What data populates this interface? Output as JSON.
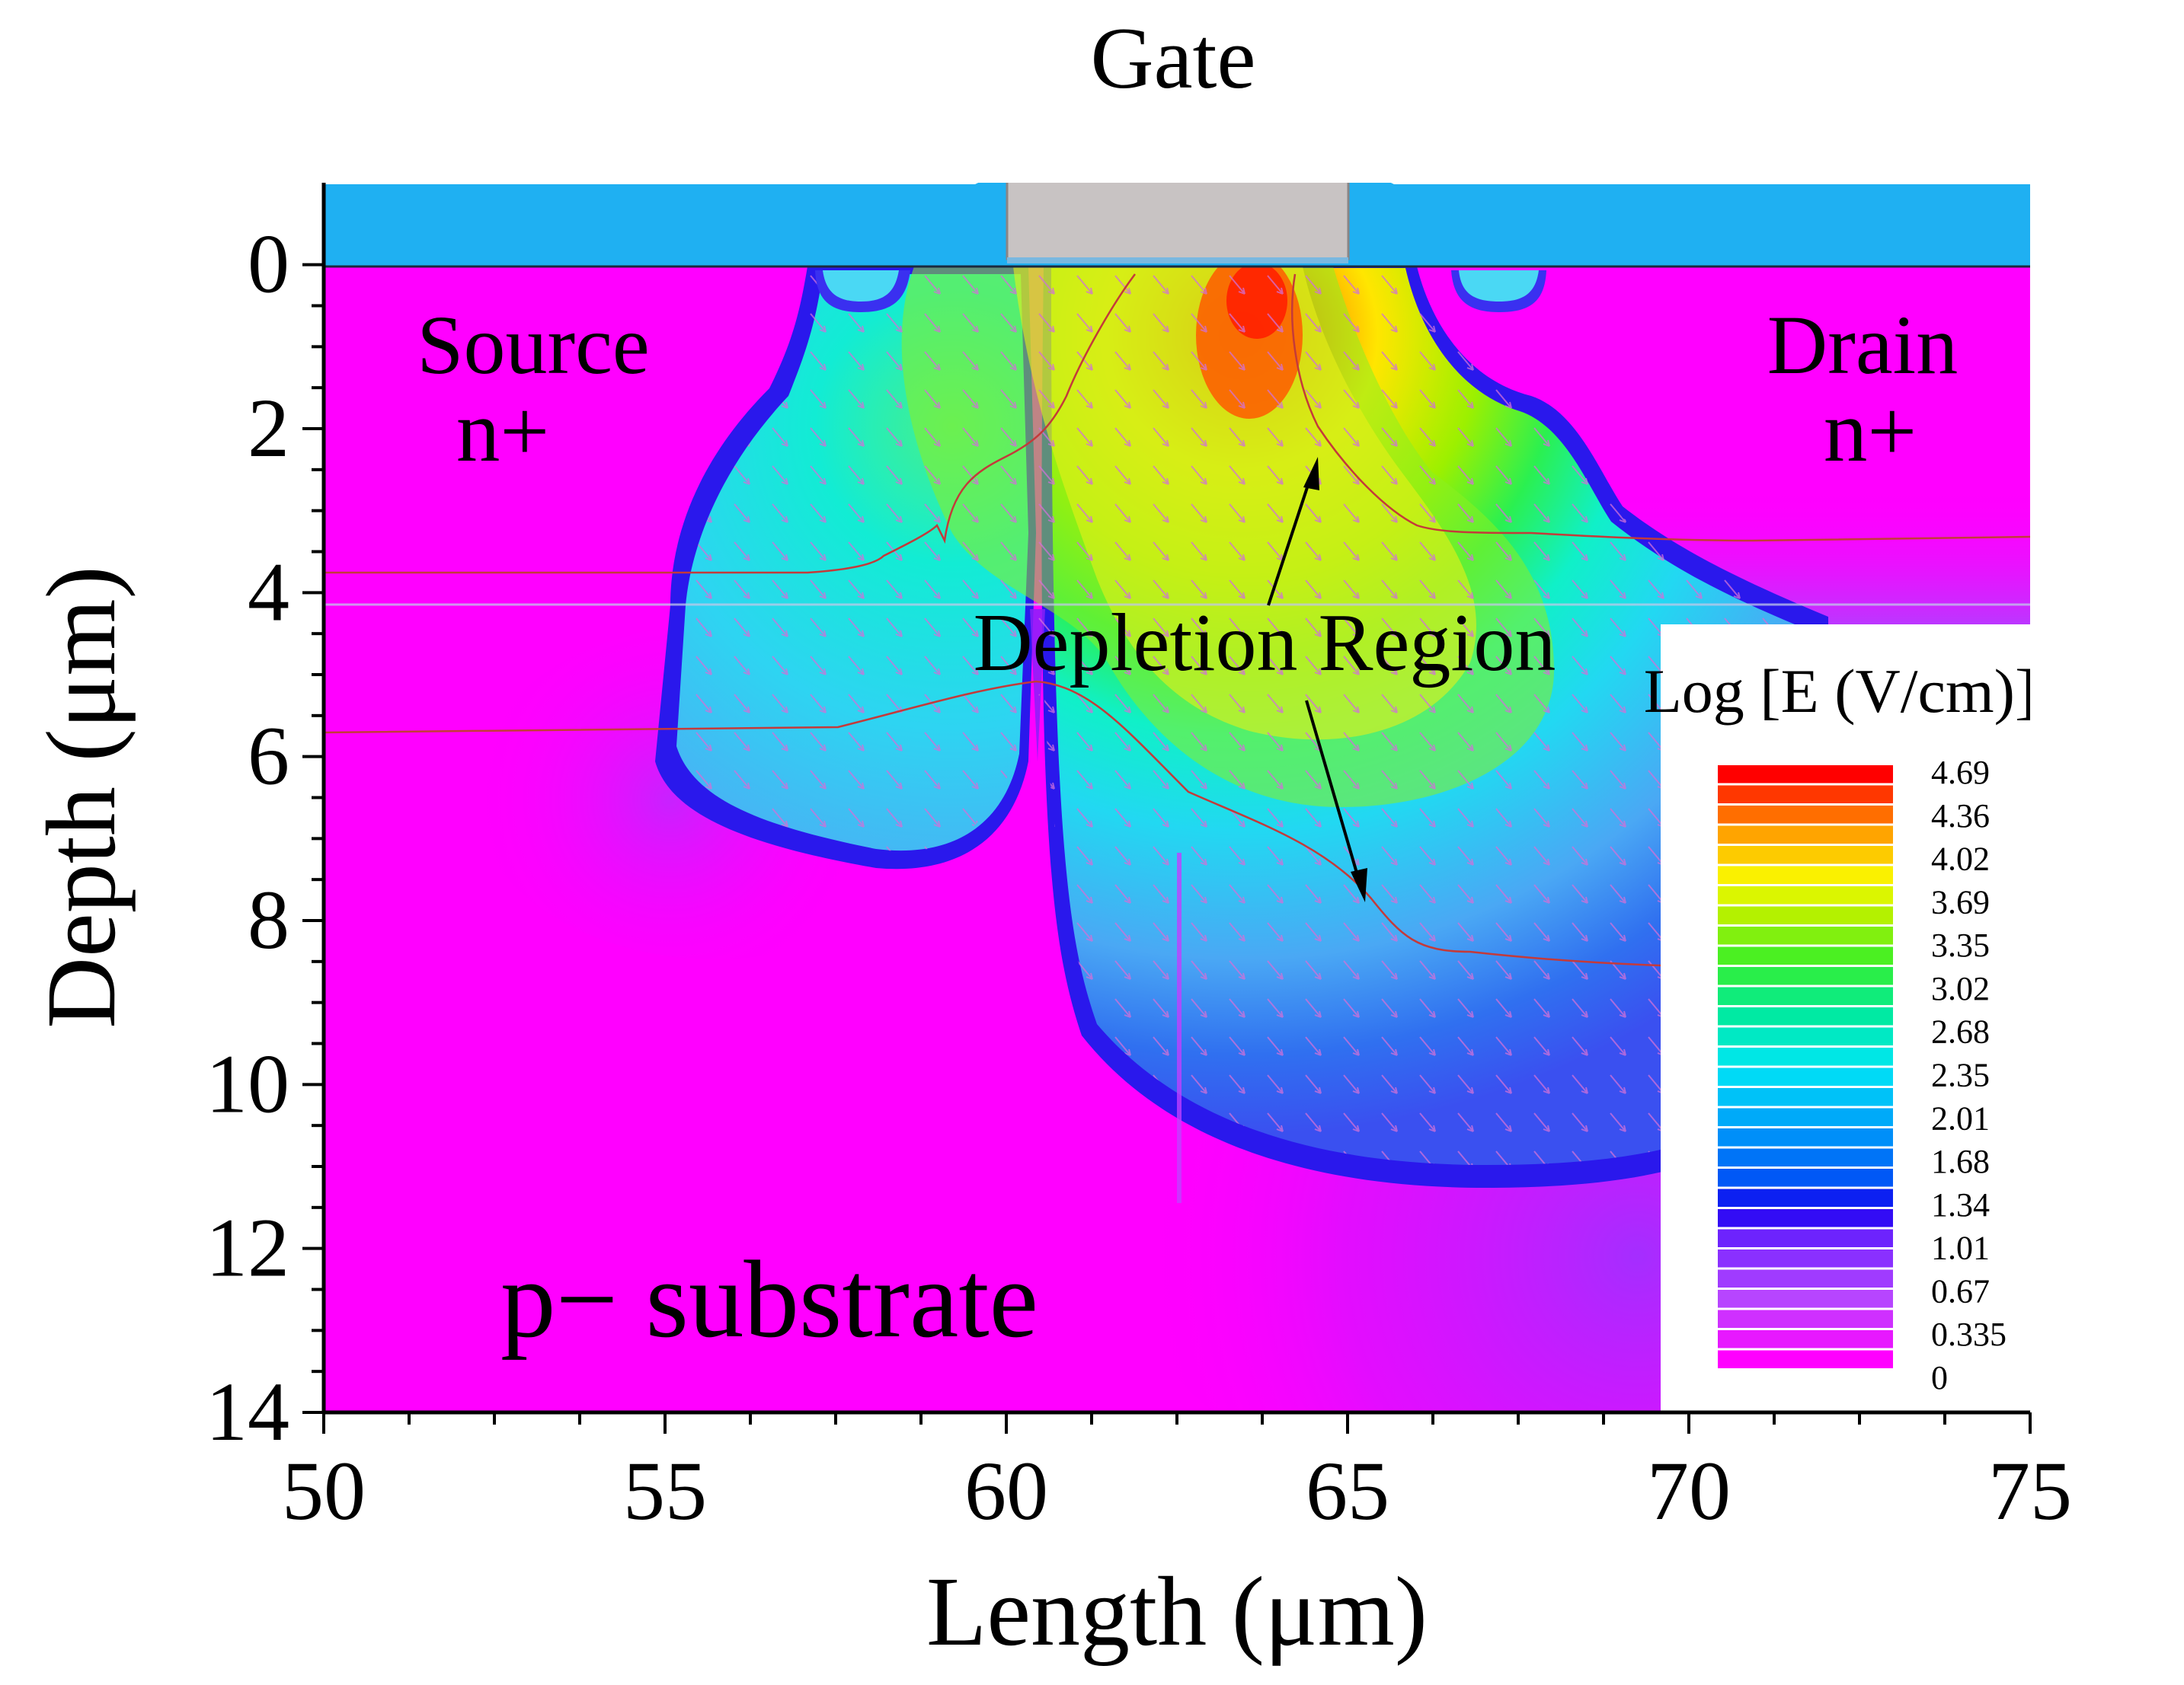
{
  "chart_data": {
    "type": "heatmap",
    "title": "",
    "xlabel": "Length (μm)",
    "ylabel": "Depth (μm)",
    "xlim": [
      50,
      75
    ],
    "ylim": [
      -1,
      14
    ],
    "y_inverted": true,
    "x_ticks": [
      50,
      55,
      60,
      65,
      70,
      75
    ],
    "y_ticks": [
      0,
      2,
      4,
      6,
      8,
      10,
      12,
      14
    ],
    "x_minor_step": 1.25,
    "y_minor_step": 0.5,
    "colorbar": {
      "title": "Log [E (V/cm)]",
      "tick_labels": [
        "4.69",
        "4.36",
        "4.02",
        "3.69",
        "3.35",
        "3.02",
        "2.68",
        "2.35",
        "2.01",
        "1.68",
        "1.34",
        "1.01",
        "0.67",
        "0.335",
        "0"
      ],
      "min": 0,
      "max": 4.69,
      "levels": 30
    },
    "regions": {
      "gate_x_range": [
        60.1,
        65.0
      ],
      "oxide_depth_range": [
        -1.0,
        0.0
      ],
      "source_boundary_depth": [
        3.75,
        5.7
      ],
      "drain_boundary_depth": 3.3,
      "field_peak": {
        "x": 63.9,
        "y": 0.4
      }
    },
    "annotations": {
      "gate": "Gate",
      "source": "Source",
      "source_type": "n+",
      "drain": "Drain",
      "drain_type": "n+",
      "depletion": "Depletion Region",
      "substrate": "p− substrate"
    },
    "colors": {
      "oxide": "#1fb0f2",
      "substrate": "#ff00ff",
      "gate": "#c8c3c3",
      "contour": "#c43a3a",
      "arrows": "#d070d8"
    }
  }
}
